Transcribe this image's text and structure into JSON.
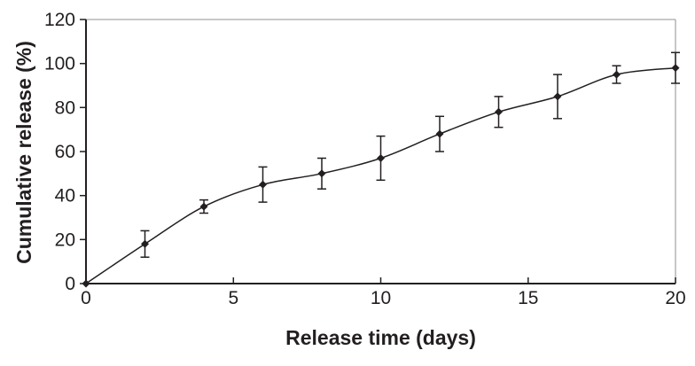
{
  "chart_data": {
    "type": "line",
    "title": "",
    "xlabel": "Release time (days)",
    "ylabel": "Cumulative release (%)",
    "x": [
      0,
      2,
      4,
      6,
      8,
      10,
      12,
      14,
      16,
      18,
      20
    ],
    "series": [
      {
        "name": "Cumulative release",
        "values": [
          0,
          18,
          35,
          45,
          50,
          57,
          68,
          78,
          85,
          95,
          98
        ],
        "errors": [
          0,
          6,
          3,
          8,
          7,
          10,
          8,
          7,
          10,
          4,
          7
        ]
      }
    ],
    "xlim": [
      0,
      20
    ],
    "ylim": [
      0,
      120
    ],
    "x_ticks": [
      0,
      5,
      10,
      15,
      20
    ],
    "y_ticks": [
      0,
      20,
      40,
      60,
      80,
      100,
      120
    ],
    "grid": false,
    "legend": "none",
    "marker": "diamond",
    "error_bars": true,
    "line_color": "#231f20",
    "ink_color": "#231f20",
    "frame_color": "#a6a8ab",
    "background_color": "#ffffff"
  }
}
